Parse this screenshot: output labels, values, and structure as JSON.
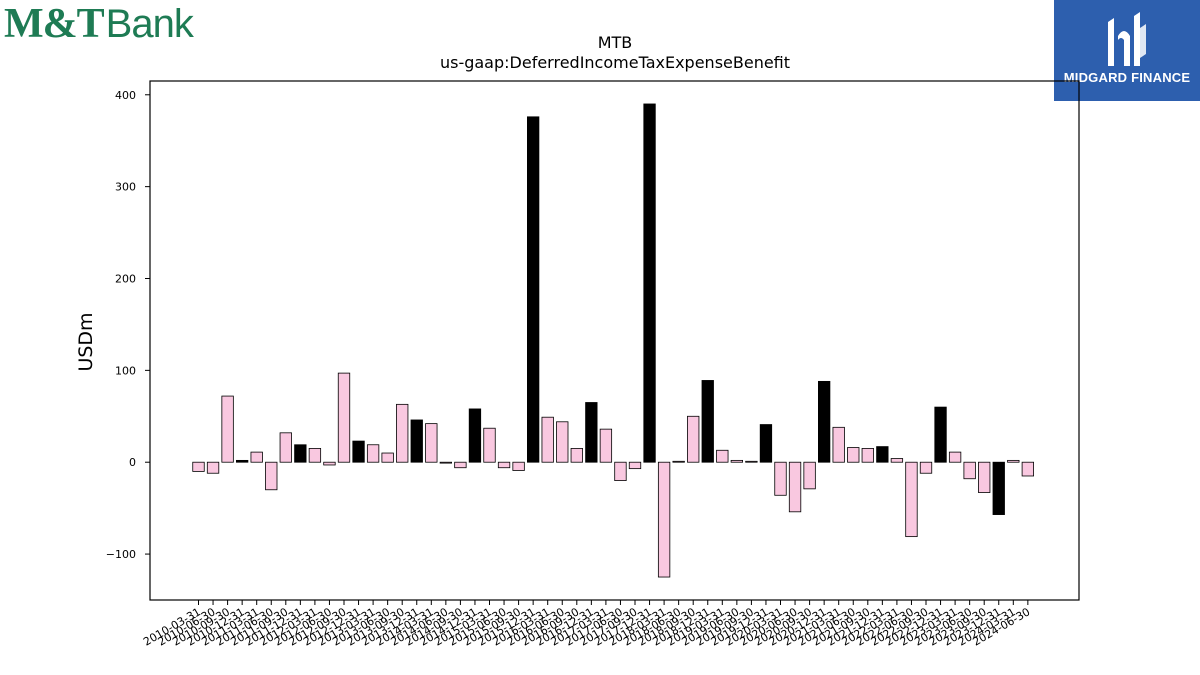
{
  "brand": {
    "main": "M&T",
    "sub": "Bank"
  },
  "badge": {
    "label": "MIDGARD FINANCE"
  },
  "colors": {
    "positive_highlight": "#000000",
    "normal": "#f9c8e0",
    "brand_green": "#1e7b54",
    "badge_blue": "#2d5fae"
  },
  "chart_data": {
    "type": "bar",
    "title": "MTB",
    "subtitle": "us-gaap:DeferredIncomeTaxExpenseBenefit",
    "xlabel": "",
    "ylabel": "USDm",
    "ylim": [
      -150,
      415
    ],
    "yticks": [
      -100,
      0,
      100,
      200,
      300,
      400
    ],
    "ytick_labels": [
      "−100",
      "0",
      "100",
      "200",
      "300",
      "400"
    ],
    "grid": false,
    "categories": [
      "2010-03-31",
      "2010-06-30",
      "2010-09-30",
      "2010-12-31",
      "2011-03-31",
      "2011-06-30",
      "2011-09-30",
      "2011-12-31",
      "2012-03-31",
      "2012-06-30",
      "2012-09-30",
      "2012-12-31",
      "2013-03-31",
      "2013-06-30",
      "2013-09-30",
      "2013-12-31",
      "2014-03-31",
      "2014-06-30",
      "2014-09-30",
      "2014-12-31",
      "2015-03-31",
      "2015-06-30",
      "2015-09-30",
      "2015-12-31",
      "2016-03-31",
      "2016-06-30",
      "2016-09-30",
      "2016-12-31",
      "2017-03-31",
      "2017-06-30",
      "2017-09-30",
      "2017-12-31",
      "2018-03-31",
      "2018-06-30",
      "2018-09-30",
      "2018-12-31",
      "2019-03-31",
      "2019-06-30",
      "2019-09-30",
      "2019-12-31",
      "2020-03-31",
      "2020-06-30",
      "2020-09-30",
      "2020-12-31",
      "2021-03-31",
      "2021-06-30",
      "2021-09-30",
      "2021-12-31",
      "2022-03-31",
      "2022-06-30",
      "2022-09-30",
      "2022-12-31",
      "2023-03-31",
      "2023-06-30",
      "2023-09-30",
      "2023-12-31",
      "2024-03-31",
      "2024-06-30"
    ],
    "values": [
      -10,
      -12,
      72,
      2,
      11,
      -30,
      32,
      19,
      15,
      -3,
      97,
      23,
      19,
      10,
      63,
      46,
      42,
      -1,
      -6,
      58,
      37,
      -6,
      -9,
      376,
      49,
      44,
      15,
      65,
      36,
      -20,
      -7,
      390,
      -125,
      1,
      50,
      89,
      13,
      2,
      1,
      41,
      -36,
      -54,
      -29,
      88,
      38,
      16,
      15,
      17,
      4,
      -81,
      -12,
      60,
      11,
      -18,
      -33,
      -57,
      2,
      -15
    ],
    "highlight": [
      false,
      false,
      false,
      true,
      false,
      false,
      false,
      true,
      false,
      false,
      false,
      true,
      false,
      false,
      false,
      true,
      false,
      false,
      false,
      true,
      false,
      false,
      false,
      true,
      false,
      false,
      false,
      true,
      false,
      false,
      false,
      true,
      false,
      false,
      false,
      true,
      false,
      false,
      false,
      true,
      false,
      false,
      false,
      true,
      false,
      false,
      false,
      true,
      false,
      false,
      false,
      true,
      false,
      false,
      false,
      true,
      false,
      false
    ]
  }
}
